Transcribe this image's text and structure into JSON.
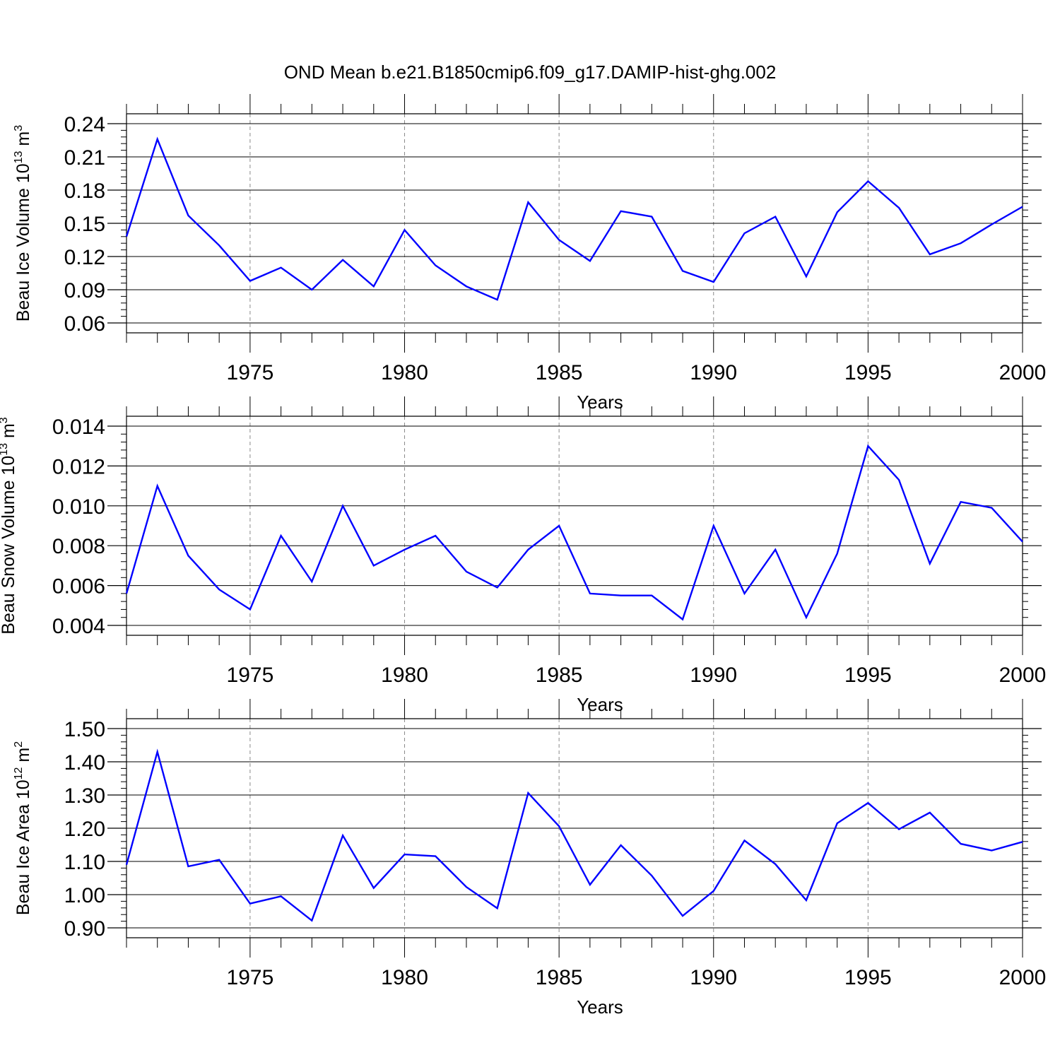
{
  "title": "OND Mean b.e21.B1850cmip6.f09_g17.DAMIP-hist-ghg.002",
  "colors": {
    "series": "#0000ff",
    "axis": "#000000",
    "grid": "#8a8a8a"
  },
  "chart_data": [
    {
      "type": "line",
      "title": "",
      "xlabel": "Years",
      "ylabel": {
        "text": "Beau Ice Volume 10",
        "sup": "13",
        "unit": "m",
        "unit_sup": "3"
      },
      "xlim": [
        1971,
        2000
      ],
      "ylim": [
        0.06,
        0.24
      ],
      "xticks": [
        1975,
        1980,
        1985,
        1990,
        1995,
        2000
      ],
      "xtick_labels": [
        "1975",
        "1980",
        "1985",
        "1990",
        "1995",
        "2000"
      ],
      "yticks": [
        0.06,
        0.09,
        0.12,
        0.15,
        0.18,
        0.21,
        0.24
      ],
      "ytick_labels": [
        "0.06",
        "0.09",
        "0.12",
        "0.15",
        "0.18",
        "0.21",
        "0.24"
      ],
      "grid": "vertical dashed at major x ticks",
      "series": [
        {
          "name": "Beau Ice Volume",
          "x": [
            1971,
            1972,
            1973,
            1974,
            1975,
            1976,
            1977,
            1978,
            1979,
            1980,
            1981,
            1982,
            1983,
            1984,
            1985,
            1986,
            1987,
            1988,
            1989,
            1990,
            1991,
            1992,
            1993,
            1994,
            1995,
            1996,
            1997,
            1998,
            1999,
            2000
          ],
          "values": [
            0.138,
            0.226,
            0.157,
            0.13,
            0.098,
            0.11,
            0.09,
            0.117,
            0.093,
            0.144,
            0.112,
            0.093,
            0.081,
            0.169,
            0.135,
            0.116,
            0.161,
            0.156,
            0.107,
            0.097,
            0.141,
            0.156,
            0.102,
            0.16,
            0.188,
            0.164,
            0.122,
            0.132,
            0.149,
            0.165
          ]
        }
      ]
    },
    {
      "type": "line",
      "title": "",
      "xlabel": "Years",
      "ylabel": {
        "text": "Beau Snow Volume 10",
        "sup": "13",
        "unit": "m",
        "unit_sup": "3"
      },
      "xlim": [
        1971,
        2000
      ],
      "ylim": [
        0.004,
        0.014
      ],
      "xticks": [
        1975,
        1980,
        1985,
        1990,
        1995,
        2000
      ],
      "xtick_labels": [
        "1975",
        "1980",
        "1985",
        "1990",
        "1995",
        "2000"
      ],
      "yticks": [
        0.004,
        0.006,
        0.008,
        0.01,
        0.012,
        0.014
      ],
      "ytick_labels": [
        "0.004",
        "0.006",
        "0.008",
        "0.010",
        "0.012",
        "0.014"
      ],
      "grid": "vertical dashed at major x ticks",
      "series": [
        {
          "name": "Beau Snow Volume",
          "x": [
            1971,
            1972,
            1973,
            1974,
            1975,
            1976,
            1977,
            1978,
            1979,
            1980,
            1981,
            1982,
            1983,
            1984,
            1985,
            1986,
            1987,
            1988,
            1989,
            1990,
            1991,
            1992,
            1993,
            1994,
            1995,
            1996,
            1997,
            1998,
            1999,
            2000
          ],
          "values": [
            0.0056,
            0.011,
            0.0075,
            0.0058,
            0.0048,
            0.0085,
            0.0062,
            0.01,
            0.007,
            0.0078,
            0.0085,
            0.0067,
            0.0059,
            0.0078,
            0.009,
            0.0056,
            0.0055,
            0.0055,
            0.0043,
            0.009,
            0.0056,
            0.0078,
            0.0044,
            0.0076,
            0.013,
            0.0113,
            0.0071,
            0.0102,
            0.0099,
            0.0082
          ]
        }
      ]
    },
    {
      "type": "line",
      "title": "",
      "xlabel": "Years",
      "ylabel": {
        "text": "Beau Ice Area 10",
        "sup": "12",
        "unit": "m",
        "unit_sup": "2"
      },
      "xlim": [
        1971,
        2000
      ],
      "ylim": [
        0.9,
        1.5
      ],
      "xticks": [
        1975,
        1980,
        1985,
        1990,
        1995,
        2000
      ],
      "xtick_labels": [
        "1975",
        "1980",
        "1985",
        "1990",
        "1995",
        "2000"
      ],
      "yticks": [
        0.9,
        1.0,
        1.1,
        1.2,
        1.3,
        1.4,
        1.5
      ],
      "ytick_labels": [
        "0.90",
        "1.00",
        "1.10",
        "1.20",
        "1.30",
        "1.40",
        "1.50"
      ],
      "grid": "vertical dashed at major x ticks",
      "series": [
        {
          "name": "Beau Ice Area",
          "x": [
            1971,
            1972,
            1973,
            1974,
            1975,
            1976,
            1977,
            1978,
            1979,
            1980,
            1981,
            1982,
            1983,
            1984,
            1985,
            1986,
            1987,
            1988,
            1989,
            1990,
            1991,
            1992,
            1993,
            1994,
            1995,
            1996,
            1997,
            1998,
            1999,
            2000
          ],
          "values": [
            1.09,
            1.43,
            1.085,
            1.105,
            0.973,
            0.995,
            0.922,
            1.178,
            1.02,
            1.121,
            1.116,
            1.023,
            0.959,
            1.306,
            1.206,
            1.03,
            1.149,
            1.057,
            0.936,
            1.011,
            1.163,
            1.092,
            0.983,
            1.215,
            1.276,
            1.197,
            1.247,
            1.153,
            1.133,
            1.159
          ]
        }
      ]
    }
  ]
}
